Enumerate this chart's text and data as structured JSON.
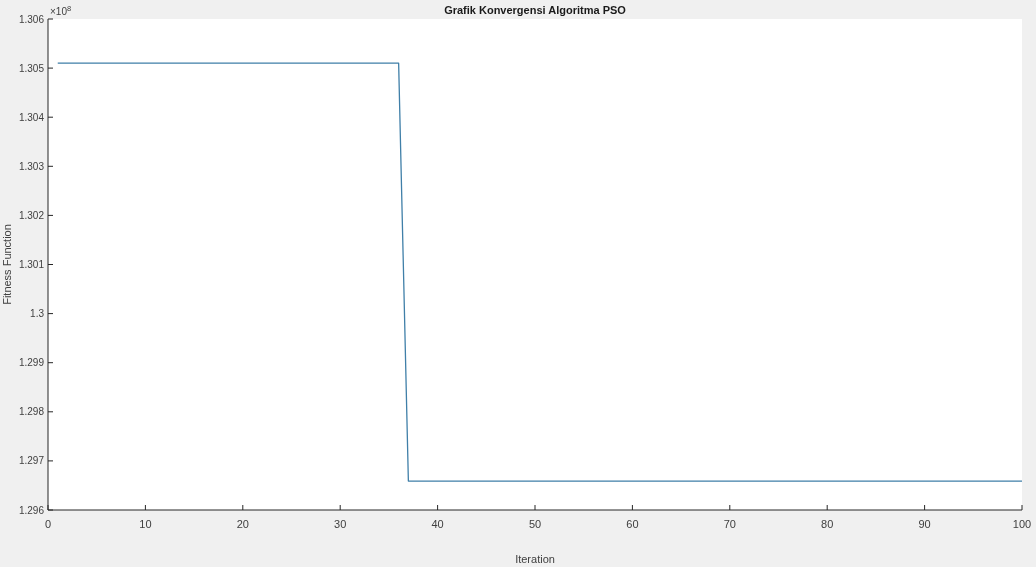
{
  "chart_data": {
    "type": "line",
    "title": "Grafik Konvergensi Algoritma PSO",
    "xlabel": "Iteration",
    "ylabel": "Fitness Function",
    "x": [
      1,
      36,
      37,
      100
    ],
    "series": [
      {
        "color": "#3f7fa8",
        "values": [
          1.3051,
          1.3051,
          1.29659,
          1.29659
        ]
      }
    ],
    "xlim": [
      0,
      100
    ],
    "xticks": [
      0,
      10,
      20,
      30,
      40,
      50,
      60,
      70,
      80,
      90,
      100
    ],
    "ylim": [
      1.296,
      1.306
    ],
    "yticks": [
      1.296,
      1.297,
      1.298,
      1.299,
      1.3,
      1.301,
      1.302,
      1.303,
      1.304,
      1.305,
      1.306
    ],
    "annotations": [
      "×10$^{8}$"
    ],
    "grid": false,
    "marker": "none",
    "line_style": "solid"
  }
}
